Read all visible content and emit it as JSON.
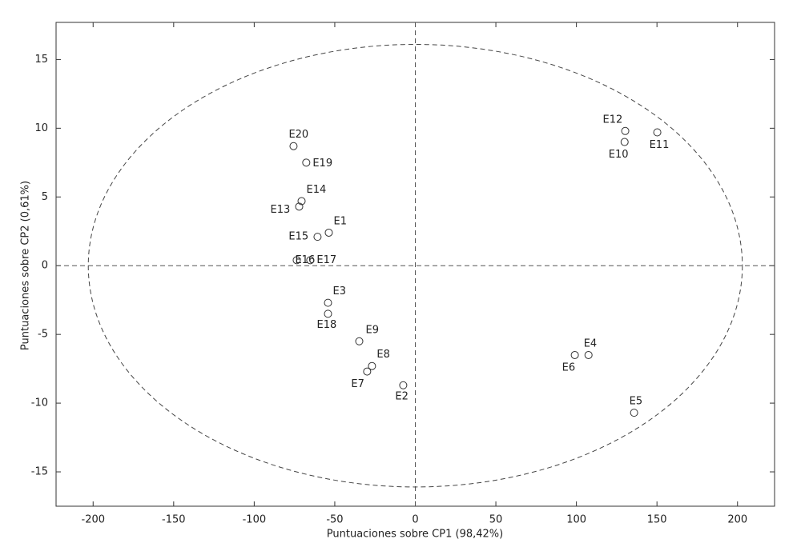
{
  "chart_data": {
    "type": "scatter",
    "x_label": "Puntuaciones sobre CP1 (98,42%)",
    "y_label": "Puntuaciones sobre CP2 (0,61%)",
    "labels": [
      "E1",
      "E2",
      "E3",
      "E4",
      "E5",
      "E6",
      "E7",
      "E8",
      "E9",
      "E10",
      "E11",
      "E12",
      "E13",
      "E14",
      "E15",
      "E16",
      "E17",
      "E18",
      "E19",
      "E20"
    ],
    "x": [
      -53.7,
      -7.5,
      -54.2,
      107.5,
      135.8,
      99,
      -29.9,
      -26.9,
      -34.8,
      129.9,
      150.2,
      130.3,
      -72.1,
      -70.6,
      -60.7,
      -73.6,
      -65.2,
      -54.2,
      -67.7,
      -75.6
    ],
    "y": [
      2.4,
      -8.7,
      -2.7,
      -6.5,
      -10.7,
      -6.5,
      -7.7,
      -7.3,
      -5.5,
      9.0,
      9.7,
      9.8,
      4.3,
      4.7,
      2.1,
      0.4,
      0.4,
      -3.5,
      7.5,
      8.7
    ],
    "ellipse_radii": [
      203,
      16.1
    ],
    "xlim": [
      -223,
      223
    ],
    "ylim": [
      -17.5,
      17.7
    ],
    "xticks": [
      -200,
      -150,
      -100,
      -50,
      0,
      50,
      100,
      150,
      200
    ],
    "yticks": [
      -15,
      -10,
      -5,
      0,
      5,
      10,
      15
    ],
    "color": "#333333"
  }
}
